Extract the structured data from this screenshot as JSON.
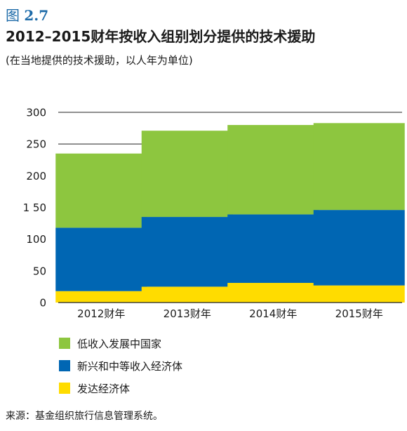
{
  "figure": {
    "prefix": "图",
    "number": "2.7"
  },
  "chart_data": {
    "type": "bar",
    "stacked": true,
    "title": "2012–2015财年按收入组别划分提供的技术援助",
    "subtitle": "(在当地提供的技术援助，以人年为单位)",
    "categories": [
      "2012财年",
      "2013财年",
      "2014财年",
      "2015财年"
    ],
    "series": [
      {
        "name": "发达经济体",
        "color": "#ffdc00",
        "values": [
          18,
          25,
          31,
          27
        ]
      },
      {
        "name": "新兴和中等收入经济体",
        "color": "#0066b3",
        "values": [
          100,
          110,
          108,
          119
        ]
      },
      {
        "name": "低收入发展中国家",
        "color": "#8dc63f",
        "values": [
          117,
          136,
          141,
          137
        ]
      }
    ],
    "ylim": [
      0,
      300
    ],
    "yticks": [
      0,
      50,
      100,
      150,
      200,
      250,
      300
    ],
    "ytick_labels": [
      "0",
      "50",
      "100",
      "1 50",
      "200",
      "250",
      "300"
    ],
    "grid": true,
    "legend_order": [
      2,
      1,
      0
    ],
    "legend_position": "bottom-left"
  },
  "source": "来源：基金组织旅行信息管理系统。"
}
